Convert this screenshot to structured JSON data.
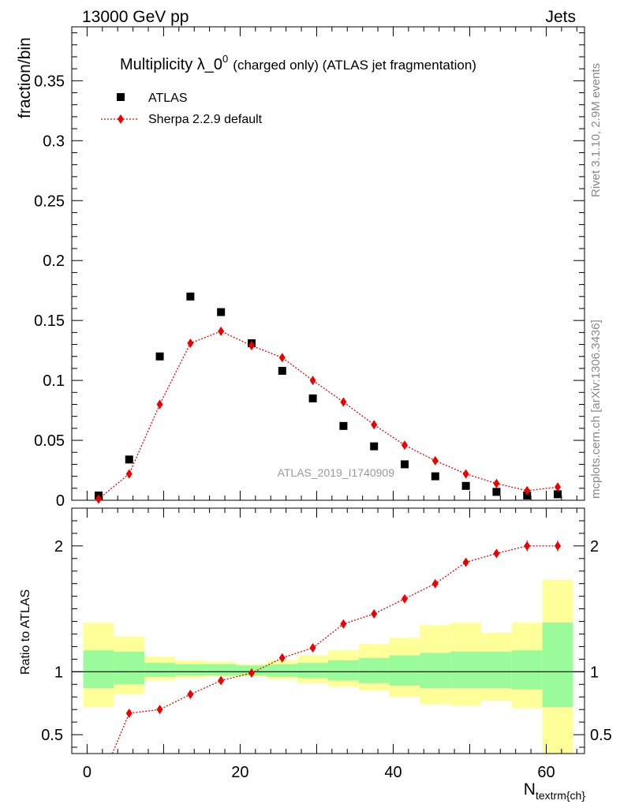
{
  "header": {
    "left": "13000 GeV pp",
    "right": "Jets"
  },
  "side_text": {
    "rivet": "Rivet 3.1.10,  2.9M events",
    "mcplots": "mcplots.cern.ch [arXiv:1306.3436]"
  },
  "colors": {
    "data": "#000000",
    "mc": "#ee0000",
    "band_inner": "#99fb99",
    "band_outer": "#ffff99"
  },
  "chart_data": [
    {
      "type": "scatter",
      "title": "Multiplicity λ_0",
      "title_sup": "0",
      "title_suffix": "(charged only) (ATLAS jet fragmentation)",
      "ylabel": "fraction/bin",
      "analysis_label": "ATLAS_2019_I1740909",
      "xlim": [
        -2,
        65
      ],
      "ylim": [
        0,
        0.395
      ],
      "yticks": [
        0,
        0.05,
        0.1,
        0.15,
        0.2,
        0.25,
        0.3,
        0.35
      ],
      "ytick_labels": [
        "0",
        "0.05",
        "0.1",
        "0.15",
        "0.2",
        "0.25",
        "0.3",
        "0.35"
      ],
      "legend_position": "top-left",
      "x": [
        1.5,
        5.5,
        9.5,
        13.5,
        17.5,
        21.5,
        25.5,
        29.5,
        33.5,
        37.5,
        41.5,
        45.5,
        49.5,
        53.5,
        57.5,
        61.5
      ],
      "series": [
        {
          "name": "ATLAS",
          "marker": "square",
          "values": [
            0.004,
            0.034,
            0.12,
            0.17,
            0.157,
            0.131,
            0.108,
            0.085,
            0.062,
            0.045,
            0.03,
            0.02,
            0.012,
            0.007,
            0.004,
            0.005
          ]
        },
        {
          "name": "Sherpa 2.2.9 default",
          "marker": "diamond",
          "line": "dotted",
          "values": [
            0.001,
            0.022,
            0.08,
            0.131,
            0.141,
            0.129,
            0.119,
            0.1,
            0.082,
            0.063,
            0.046,
            0.033,
            0.022,
            0.014,
            0.008,
            0.011
          ]
        }
      ]
    },
    {
      "type": "scatter",
      "ylabel": "Ratio to ATLAS",
      "xlabel": "N",
      "xlabel_sub": "textrm{ch}",
      "xlim": [
        -2,
        65
      ],
      "ylim": [
        0.35,
        2.3
      ],
      "yticks": [
        0.5,
        1,
        2
      ],
      "ytick_labels": [
        "0.5",
        "1",
        "2"
      ],
      "xticks": [
        0,
        20,
        40,
        60
      ],
      "xtick_labels": [
        "0",
        "20",
        "40",
        "60"
      ],
      "bin_edges": [
        -0.5,
        3.5,
        7.5,
        11.5,
        15.5,
        19.5,
        23.5,
        27.5,
        31.5,
        35.5,
        39.5,
        43.5,
        47.5,
        51.5,
        55.5,
        59.5,
        63.5
      ],
      "band_inner_low": [
        0.87,
        0.9,
        0.96,
        0.97,
        0.97,
        0.97,
        0.96,
        0.95,
        0.93,
        0.91,
        0.89,
        0.87,
        0.87,
        0.87,
        0.86,
        0.72
      ],
      "band_inner_high": [
        1.17,
        1.16,
        1.07,
        1.06,
        1.06,
        1.05,
        1.06,
        1.07,
        1.09,
        1.11,
        1.13,
        1.15,
        1.16,
        1.16,
        1.17,
        1.39
      ],
      "band_outer_low": [
        0.72,
        0.82,
        0.93,
        0.95,
        0.96,
        0.96,
        0.94,
        0.91,
        0.88,
        0.85,
        0.8,
        0.74,
        0.73,
        0.77,
        0.71,
        0.35
      ],
      "band_outer_high": [
        1.39,
        1.28,
        1.12,
        1.09,
        1.08,
        1.06,
        1.09,
        1.13,
        1.17,
        1.22,
        1.27,
        1.37,
        1.39,
        1.31,
        1.39,
        1.73
      ],
      "ratio_x": [
        3.3,
        5.5,
        9.5,
        13.5,
        17.5,
        21.5,
        25.5,
        29.5,
        33.5,
        37.5,
        41.5,
        45.5,
        49.5,
        53.5,
        57.5,
        61.5
      ],
      "ratio_values": [
        0.35,
        0.67,
        0.7,
        0.82,
        0.93,
        0.99,
        1.11,
        1.19,
        1.38,
        1.46,
        1.58,
        1.7,
        1.87,
        1.94,
        2.0,
        2.0
      ],
      "ratio_marker_from_index": 1
    }
  ]
}
